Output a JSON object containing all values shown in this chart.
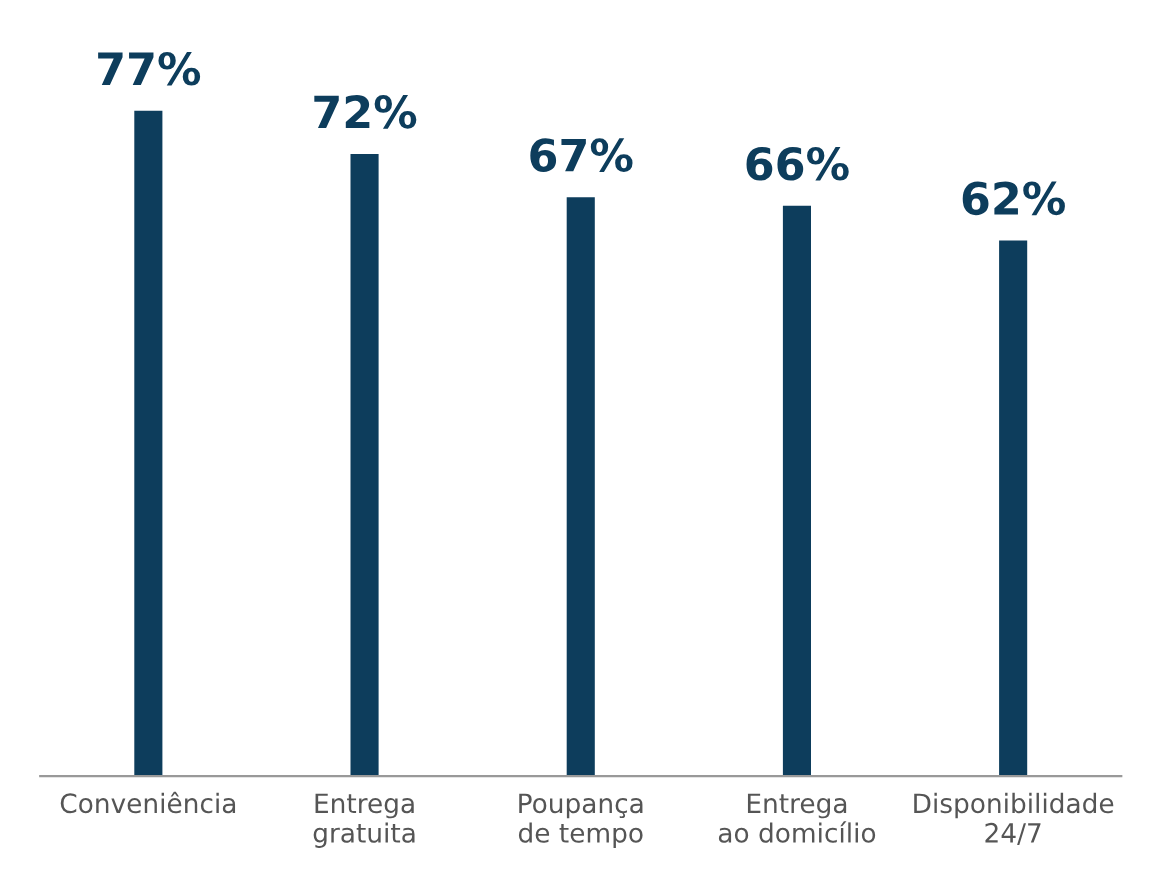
{
  "chart_data": {
    "type": "bar",
    "categories": [
      "Conveniência",
      "Entrega\ngratuita",
      "Poupança\nde tempo",
      "Entrega\nao domicílio",
      "Disponibilidade\n24/7"
    ],
    "values": [
      77,
      72,
      67,
      66,
      62
    ],
    "color": "#0d3d5c",
    "data_labels": true,
    "value_labels": [
      "77%",
      "72%",
      "67%",
      "66%",
      "62%"
    ],
    "grid": false,
    "legend": false
  }
}
